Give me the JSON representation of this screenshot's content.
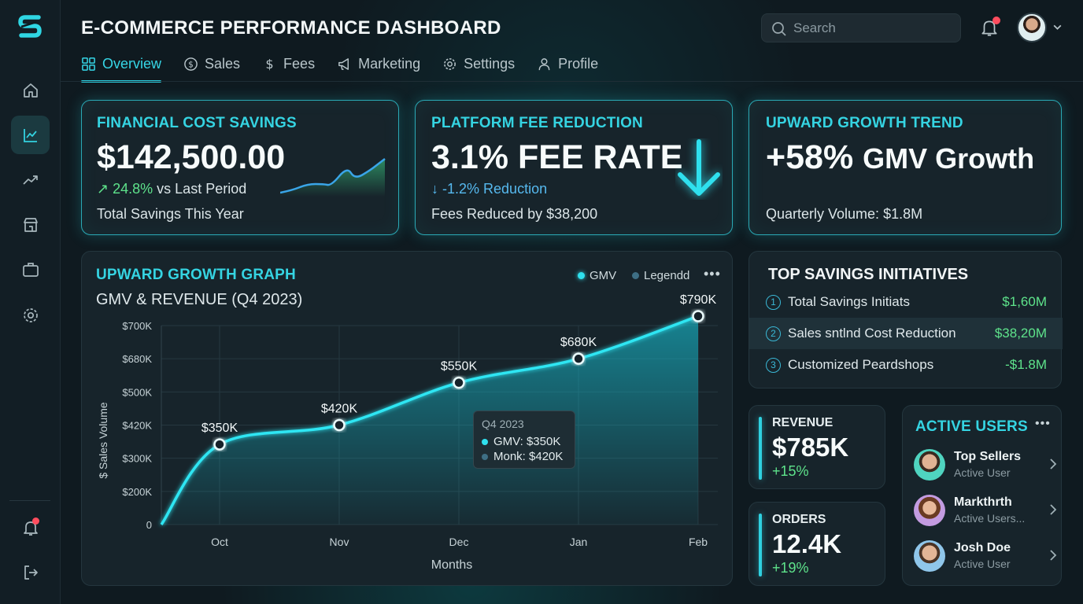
{
  "header": {
    "title": "E-COMMERCE PERFORMANCE DASHBOARD",
    "search_placeholder": "Search"
  },
  "tabs": [
    {
      "label": "Overview",
      "icon": "grid-icon"
    },
    {
      "label": "Sales",
      "icon": "dollar-circle-icon"
    },
    {
      "label": "Fees",
      "icon": "dollar-icon"
    },
    {
      "label": "Marketing",
      "icon": "megaphone-icon"
    },
    {
      "label": "Settings",
      "icon": "gear-icon"
    },
    {
      "label": "Profile",
      "icon": "user-icon"
    }
  ],
  "kpis": {
    "savings": {
      "title": "FINANCIAL COST SAVINGS",
      "value": "$142,500.00",
      "delta": "24.8%",
      "delta_suffix": "vs Last Period",
      "note": "Total Savings This Year"
    },
    "fee": {
      "title": "PLATFORM FEE REDUCTION",
      "value": "3.1% FEE RATE",
      "delta": "-1.2% Reduction",
      "note": "Fees Reduced by $38,200"
    },
    "growth": {
      "title": "UPWARD GROWTH TREND",
      "value": "+58%",
      "value_suffix": "GMV Growth",
      "note": "Quarterly Volume: $1.8M"
    }
  },
  "graph": {
    "card_title": "UPWARD GROWTH GRAPH",
    "legend": [
      {
        "name": "GMV",
        "color": "#2fe0ee"
      },
      {
        "name": "Legendd",
        "color": "#3e6f85"
      }
    ],
    "tooltip": {
      "title": "Q4 2023",
      "lines": [
        "GMV: $350K",
        "Monk: $420K"
      ]
    }
  },
  "chart_data": {
    "type": "line",
    "title": "GMV & REVENUE (Q4 2023)",
    "xlabel": "Months",
    "ylabel": "$ Sales Volume",
    "y_ticks": [
      "0",
      "$200K",
      "$300K",
      "$420K",
      "$500K",
      "$680K",
      "$700K"
    ],
    "categories": [
      "Oct",
      "Nov",
      "Dec",
      "Jan",
      "Feb"
    ],
    "series": [
      {
        "name": "GMV",
        "points": [
          {
            "x": "Oct",
            "y": 350,
            "label": "$350K"
          },
          {
            "x": "Nov",
            "y": 420,
            "label": "$420K"
          },
          {
            "x": "Dec",
            "y": 550,
            "label": "$550K"
          },
          {
            "x": "Jan",
            "y": 680,
            "label": "$680K"
          },
          {
            "x": "Feb",
            "y": 790,
            "label": "$790K"
          }
        ]
      }
    ],
    "grid": true
  },
  "initiatives": {
    "title": "TOP SAVINGS INITIATIVES",
    "items": [
      {
        "num": "1",
        "label": "Total Savings Initiats",
        "value": "$1,60M"
      },
      {
        "num": "2",
        "label": "Sales ѕntlnd Cost Reduction",
        "value": "$38,20M"
      },
      {
        "num": "3",
        "label": "Customized Peardshops",
        "value": "-$1.8M"
      }
    ]
  },
  "stats": {
    "revenue": {
      "label": "REVENUE",
      "value": "$785K",
      "delta": "+15%"
    },
    "orders": {
      "label": "ORDERS",
      "value": "12.4K",
      "delta": "+19%"
    }
  },
  "users": {
    "title": "ACTIVE USERS",
    "items": [
      {
        "name": "Top Sellers",
        "role": "Active User"
      },
      {
        "name": "Markthrth",
        "role": "Active Users..."
      },
      {
        "name": "Josh Doe",
        "role": "Active User"
      }
    ]
  },
  "colors": {
    "accent": "#2fd0df",
    "positive": "#5ee38b",
    "negative_info": "#56b9ef"
  }
}
